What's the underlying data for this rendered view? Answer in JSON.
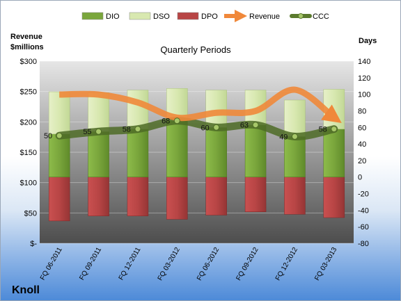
{
  "company": "Knoll",
  "chart_data": {
    "type": "bar",
    "title": "Quarterly Periods",
    "left_axis_label": [
      "Revenue",
      "$millions"
    ],
    "right_axis_label": "Days",
    "categories": [
      "FQ 06-2011",
      "FQ 09-2011",
      "FQ 12-2011",
      "FQ 03-2012",
      "FQ 06-2012",
      "FQ 09-2012",
      "FQ 12-2012",
      "FQ 03-2013"
    ],
    "left_ylim": [
      0,
      300
    ],
    "left_ticks": [
      0,
      50,
      100,
      150,
      200,
      250,
      300
    ],
    "left_tick_labels": [
      "$-",
      "$50",
      "$100",
      "$150",
      "$200",
      "$250",
      "$300"
    ],
    "right_ylim": [
      -80,
      140
    ],
    "right_ticks": [
      -80,
      -60,
      -40,
      -20,
      0,
      20,
      40,
      60,
      80,
      100,
      120,
      140
    ],
    "series": [
      {
        "name": "DIO",
        "values": [
          52,
          55,
          58,
          68,
          60,
          63,
          49,
          58
        ],
        "color": "#7aa63c"
      },
      {
        "name": "DSO",
        "values": [
          51,
          47,
          47,
          39,
          45,
          42,
          44,
          48
        ],
        "color": "#d8e8b0"
      },
      {
        "name": "DPO",
        "values": [
          -53,
          -47,
          -47,
          -51,
          -46,
          -42,
          -45,
          -49
        ],
        "color": "#b84545"
      },
      {
        "name": "Revenue",
        "values": [
          245,
          245,
          232,
          207,
          215,
          218,
          253,
          207
        ],
        "color": "#f0883a",
        "axis": "left"
      },
      {
        "name": "CCC",
        "values": [
          50,
          55,
          58,
          68,
          60,
          63,
          49,
          58
        ],
        "color": "#5b7a2e",
        "axis": "right"
      }
    ],
    "data_labels": [
      "50",
      "55",
      "58",
      "68",
      "60",
      "63",
      "49",
      "58"
    ],
    "legend_position": "top"
  }
}
